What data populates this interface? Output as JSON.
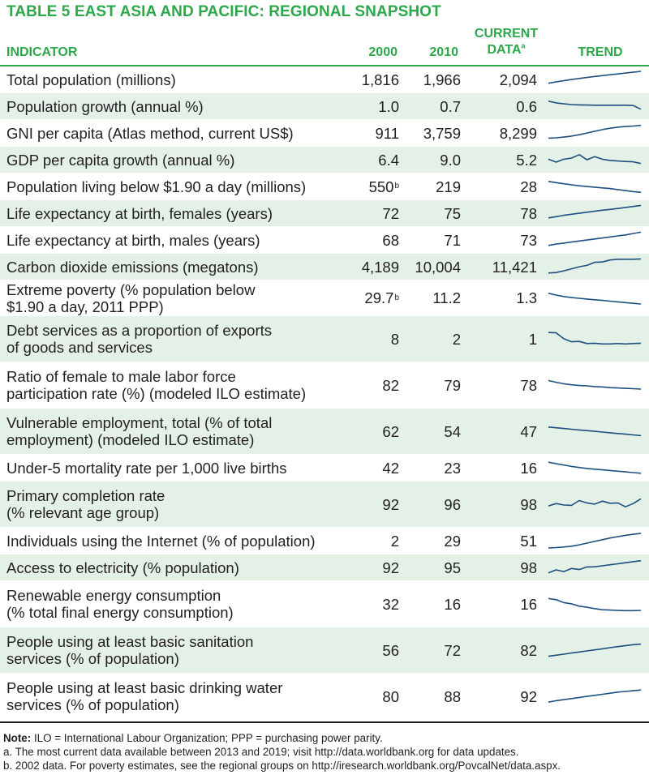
{
  "title": "TABLE 5  EAST ASIA AND PACIFIC: REGIONAL SNAPSHOT",
  "headers": {
    "indicator": "INDICATOR",
    "y2000": "2000",
    "y2010": "2010",
    "current_line1": "CURRENT",
    "current_line2": "DATA",
    "current_sup": "a",
    "trend": "TREND"
  },
  "colors": {
    "accent": "#2ca84a",
    "shade": "#e4f1e6",
    "trend_line": "#1d4f80"
  },
  "rows": [
    {
      "label": "Total population (millions)",
      "v2000": "1,816",
      "v2010": "1,966",
      "current": "2,094",
      "trend": [
        0.3,
        0.38,
        0.45,
        0.52,
        0.58,
        0.64,
        0.7,
        0.75,
        0.8,
        0.85,
        0.9,
        0.95,
        1.0
      ]
    },
    {
      "label": "Population growth (annual %)",
      "v2000": "1.0",
      "v2010": "0.7",
      "current": "0.6",
      "trend": [
        0.82,
        0.72,
        0.66,
        0.62,
        0.6,
        0.59,
        0.58,
        0.58,
        0.58,
        0.58,
        0.58,
        0.56,
        0.35
      ]
    },
    {
      "label": "GNI per capita (Atlas method, current US$)",
      "v2000": "911",
      "v2010": "3,759",
      "current": "8,299",
      "trend": [
        0.22,
        0.24,
        0.28,
        0.34,
        0.42,
        0.52,
        0.62,
        0.72,
        0.8,
        0.86,
        0.9,
        0.93,
        0.97
      ]
    },
    {
      "label": "GDP per capita growth (annual %)",
      "v2000": "6.4",
      "v2010": "9.0",
      "current": "5.2",
      "trend": [
        0.55,
        0.38,
        0.55,
        0.62,
        0.82,
        0.52,
        0.7,
        0.55,
        0.48,
        0.45,
        0.42,
        0.4,
        0.3
      ]
    },
    {
      "label": "Population living below $1.90 a day (millions)",
      "v2000": "550",
      "v2000_sup": "b",
      "v2010": "219",
      "current": "28",
      "trend": [
        0.82,
        0.75,
        0.68,
        0.62,
        0.56,
        0.52,
        0.48,
        0.44,
        0.4,
        0.34,
        0.28,
        0.22,
        0.18
      ]
    },
    {
      "label": "Life expectancy at birth, females (years)",
      "v2000": "72",
      "v2010": "75",
      "current": "78",
      "trend": [
        0.25,
        0.32,
        0.4,
        0.46,
        0.52,
        0.58,
        0.64,
        0.7,
        0.75,
        0.8,
        0.86,
        0.92,
        0.98
      ]
    },
    {
      "label": "Life expectancy at birth, males (years)",
      "v2000": "68",
      "v2010": "71",
      "current": "73",
      "trend": [
        0.2,
        0.28,
        0.34,
        0.4,
        0.46,
        0.52,
        0.58,
        0.64,
        0.7,
        0.76,
        0.82,
        0.9,
        0.98
      ]
    },
    {
      "label": "Carbon dioxide emissions (megatons)",
      "v2000": "4,189",
      "v2010": "10,004",
      "current": "11,421",
      "trend": [
        0.15,
        0.18,
        0.28,
        0.4,
        0.52,
        0.6,
        0.78,
        0.8,
        0.92,
        0.96,
        0.96,
        0.96,
        0.98
      ]
    },
    {
      "label": "Extreme poverty (% population below\n$1.90 a day, 2011 PPP)",
      "v2000": "29.7",
      "v2000_sup": "b",
      "v2010": "11.2",
      "current": "1.3",
      "trend": [
        0.78,
        0.68,
        0.6,
        0.54,
        0.5,
        0.46,
        0.42,
        0.38,
        0.34,
        0.3,
        0.26,
        0.22,
        0.18
      ]
    },
    {
      "label": "Debt services as a proportion of exports\nof goods and services",
      "v2000": "8",
      "v2010": "2",
      "current": "1",
      "trend": [
        0.9,
        0.88,
        0.55,
        0.38,
        0.4,
        0.28,
        0.3,
        0.26,
        0.26,
        0.28,
        0.26,
        0.28,
        0.3
      ]
    },
    {
      "label": "Ratio of female to male labor force\nparticipation rate (%) (modeled ILO estimate)",
      "v2000": "82",
      "v2010": "79",
      "current": "78",
      "trend": [
        0.8,
        0.7,
        0.62,
        0.56,
        0.52,
        0.5,
        0.46,
        0.44,
        0.4,
        0.38,
        0.36,
        0.34,
        0.32
      ]
    },
    {
      "label": "Vulnerable employment, total (% of total\nemployment) (modeled ILO estimate)",
      "v2000": "62",
      "v2010": "54",
      "current": "47",
      "trend": [
        0.78,
        0.74,
        0.7,
        0.66,
        0.62,
        0.58,
        0.54,
        0.5,
        0.46,
        0.42,
        0.38,
        0.34,
        0.3
      ]
    },
    {
      "label": "Under-5 mortality rate per 1,000 live births",
      "v2000": "42",
      "v2010": "23",
      "current": "16",
      "trend": [
        0.85,
        0.76,
        0.68,
        0.6,
        0.54,
        0.48,
        0.44,
        0.4,
        0.36,
        0.32,
        0.28,
        0.24,
        0.2
      ]
    },
    {
      "label": "Primary completion rate\n(% relevant age group)",
      "v2000": "92",
      "v2010": "96",
      "current": "98",
      "trend": [
        0.45,
        0.58,
        0.5,
        0.48,
        0.75,
        0.62,
        0.55,
        0.72,
        0.6,
        0.62,
        0.4,
        0.58,
        0.85
      ]
    },
    {
      "label": "Individuals using the Internet (% of population)",
      "v2000": "2",
      "v2010": "29",
      "current": "51",
      "trend": [
        0.1,
        0.12,
        0.15,
        0.2,
        0.28,
        0.38,
        0.48,
        0.58,
        0.68,
        0.76,
        0.84,
        0.9,
        0.95
      ]
    },
    {
      "label": "Access to electricity (% population)",
      "v2000": "92",
      "v2010": "95",
      "current": "98",
      "trend": [
        0.2,
        0.38,
        0.28,
        0.46,
        0.4,
        0.55,
        0.56,
        0.62,
        0.68,
        0.74,
        0.8,
        0.86,
        0.92
      ]
    },
    {
      "label": "Renewable energy consumption\n(% total final energy consumption)",
      "v2000": "32",
      "v2010": "16",
      "current": "16",
      "trend": [
        0.85,
        0.78,
        0.62,
        0.55,
        0.42,
        0.36,
        0.28,
        0.22,
        0.2,
        0.18,
        0.17,
        0.17,
        0.18
      ]
    },
    {
      "label": "People using at least basic sanitation\nservices (% of population)",
      "v2000": "56",
      "v2010": "72",
      "current": "82",
      "trend": [
        0.2,
        0.26,
        0.32,
        0.38,
        0.44,
        0.5,
        0.56,
        0.62,
        0.68,
        0.74,
        0.8,
        0.85,
        0.88
      ]
    },
    {
      "label": "People using at least basic drinking water\nservices (% of population)",
      "v2000": "80",
      "v2010": "88",
      "current": "92",
      "trend": [
        0.22,
        0.3,
        0.36,
        0.42,
        0.48,
        0.54,
        0.6,
        0.66,
        0.72,
        0.78,
        0.82,
        0.86,
        0.9
      ]
    }
  ],
  "notes": {
    "note_label": "Note:",
    "note_text": " ILO = International Labour Organization; PPP = purchasing power parity.",
    "a": "a.  The most current data available between 2013 and 2019; visit http://data.worldbank.org for data updates.",
    "b": "b.  2002 data. For poverty estimates, see the regional groups on http://iresearch.worldbank.org/PovcalNet/data.aspx."
  }
}
